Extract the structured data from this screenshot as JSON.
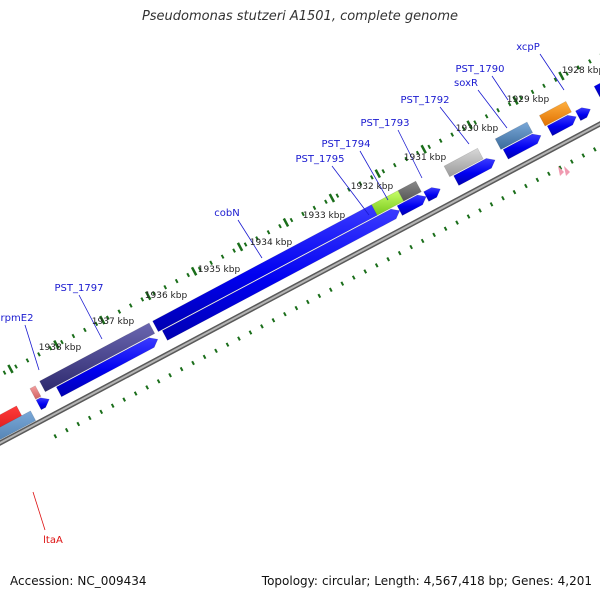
{
  "title": "Pseudomonas stutzeri A1501, complete genome",
  "footer": {
    "accession_label": "Accession:",
    "accession": "NC_009434",
    "topology_label": "Topology:",
    "topology": "circular;",
    "length_label": "Length:",
    "length": "4,567,418 bp;",
    "genes_label": "Genes:",
    "genes": "4,201"
  },
  "ticks": [
    "1928 kbp",
    "1929 kbp",
    "1930 kbp",
    "1931 kbp",
    "1932 kbp",
    "1933 kbp",
    "1934 kbp",
    "1935 kbp",
    "1936 kbp",
    "1937 kbp",
    "1938 kbp"
  ],
  "genes": [
    "xcpP",
    "PST_1790",
    "soxR",
    "PST_1792",
    "PST_1793",
    "PST_1794",
    "PST_1795",
    "cobN",
    "PST_1797",
    "rpmE2",
    "ltaA"
  ],
  "colors": {
    "gene_arrow": "#0000ee",
    "gene_label": "#1a1ad0",
    "highlight_label": "#dd1111",
    "tick_mark": "#1a6e1a",
    "backbone": "#888888"
  }
}
